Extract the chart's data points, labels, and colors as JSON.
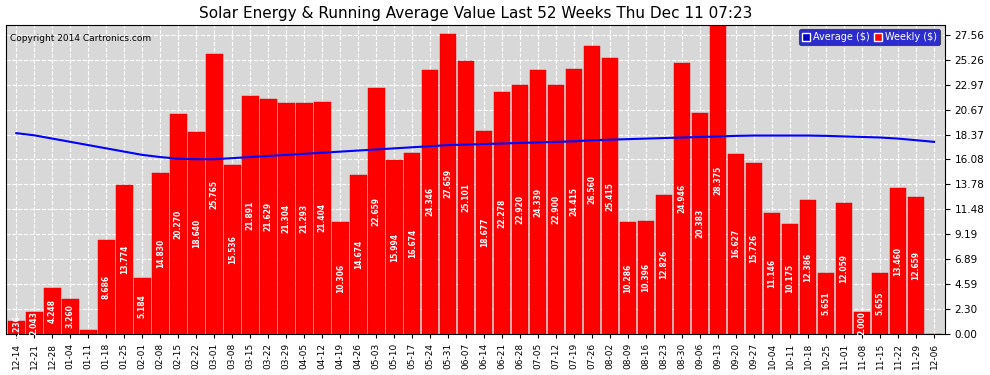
{
  "title": "Solar Energy & Running Average Value Last 52 Weeks Thu Dec 11 07:23",
  "copyright": "Copyright 2014 Cartronics.com",
  "bar_color": "#ff0000",
  "avg_line_color": "#0000ff",
  "background_color": "#d8d8d8",
  "fig_background_color": "#ffffff",
  "grid_color": "#ffffff",
  "yticks": [
    0.0,
    2.3,
    4.59,
    6.89,
    9.19,
    11.48,
    13.78,
    16.08,
    18.37,
    20.67,
    22.97,
    25.26,
    27.56
  ],
  "legend_avg_label": "Average ($)",
  "legend_weekly_label": "Weekly ($)",
  "categories": [
    "12-14",
    "12-21",
    "12-28",
    "01-04",
    "01-11",
    "01-18",
    "01-25",
    "02-01",
    "02-08",
    "02-15",
    "02-22",
    "03-01",
    "03-08",
    "03-15",
    "03-22",
    "03-29",
    "04-05",
    "04-12",
    "04-19",
    "04-26",
    "05-03",
    "05-10",
    "05-17",
    "05-24",
    "05-31",
    "06-07",
    "06-14",
    "06-21",
    "06-28",
    "07-05",
    "07-12",
    "07-19",
    "07-26",
    "08-02",
    "08-09",
    "08-16",
    "08-23",
    "08-30",
    "09-06",
    "09-13",
    "09-20",
    "09-27",
    "10-04",
    "10-11",
    "10-18",
    "10-25",
    "11-01",
    "11-08",
    "11-15",
    "11-22",
    "11-29",
    "12-06"
  ],
  "values": [
    1.236,
    2.043,
    4.248,
    3.26,
    0.392,
    8.686,
    13.774,
    5.184,
    14.83,
    20.27,
    18.64,
    25.765,
    15.536,
    21.891,
    21.629,
    21.304,
    21.293,
    21.404,
    10.306,
    14.674,
    22.659,
    15.994,
    16.674,
    24.346,
    27.659,
    25.101,
    18.677,
    22.278,
    22.92,
    24.339,
    22.9,
    24.415,
    26.56,
    25.415,
    10.286,
    10.396,
    12.826,
    24.946,
    20.383,
    28.375,
    16.627,
    15.726,
    11.146,
    10.175,
    12.386,
    5.651,
    12.059,
    2.0,
    5.655,
    13.46,
    12.659,
    0.0
  ],
  "running_avg": [
    18.5,
    18.3,
    18.0,
    17.7,
    17.4,
    17.1,
    16.8,
    16.5,
    16.3,
    16.15,
    16.1,
    16.1,
    16.2,
    16.3,
    16.4,
    16.5,
    16.6,
    16.7,
    16.8,
    16.9,
    17.0,
    17.1,
    17.2,
    17.3,
    17.4,
    17.45,
    17.5,
    17.55,
    17.6,
    17.65,
    17.7,
    17.75,
    17.85,
    17.9,
    17.95,
    18.0,
    18.05,
    18.1,
    18.15,
    18.2,
    18.25,
    18.28,
    18.28,
    18.28,
    18.28,
    18.25,
    18.2,
    18.15,
    18.1,
    18.0,
    17.85,
    17.7
  ],
  "ylim": [
    0,
    28.5
  ]
}
